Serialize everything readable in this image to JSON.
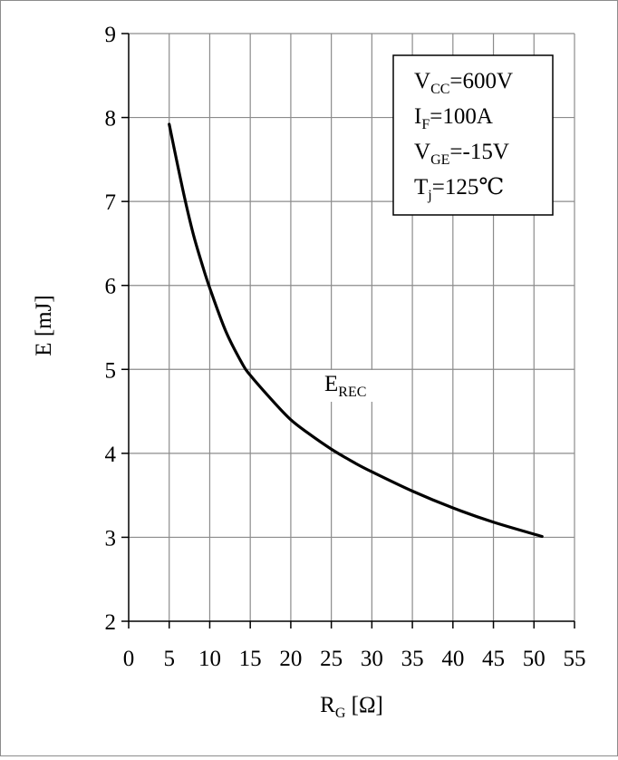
{
  "chart_data": {
    "type": "line",
    "xlabel": {
      "main": "R",
      "sub": "G",
      "unit": " [Ω]"
    },
    "ylabel": "E [mJ]",
    "xlim": [
      0,
      55
    ],
    "ylim": [
      2,
      9
    ],
    "xticks": [
      0,
      5,
      10,
      15,
      20,
      25,
      30,
      35,
      40,
      45,
      50,
      55
    ],
    "yticks": [
      2,
      3,
      4,
      5,
      6,
      7,
      8,
      9
    ],
    "grid": true,
    "series": [
      {
        "label": {
          "main": "E",
          "sub": "REC"
        },
        "x": [
          5,
          6,
          7,
          8,
          9,
          10,
          12,
          14,
          15,
          18,
          20,
          22,
          25,
          28,
          30,
          35,
          40,
          45,
          51
        ],
        "y": [
          7.92,
          7.45,
          7.0,
          6.6,
          6.27,
          5.97,
          5.45,
          5.07,
          4.93,
          4.6,
          4.4,
          4.25,
          4.05,
          3.88,
          3.78,
          3.55,
          3.35,
          3.18,
          3.01
        ]
      }
    ],
    "conditions": [
      {
        "main": "V",
        "sub": "CC",
        "rest": "=600V"
      },
      {
        "main": "I",
        "sub": "F",
        "rest": "=100A"
      },
      {
        "main": "V",
        "sub": "GE",
        "rest": "=-15V"
      },
      {
        "main": "T",
        "sub": "j",
        "rest": "=125℃"
      }
    ]
  }
}
